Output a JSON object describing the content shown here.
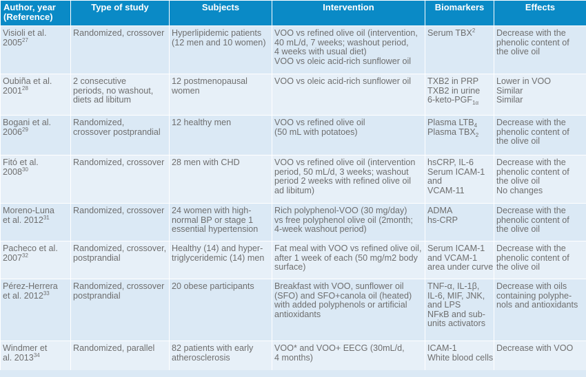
{
  "table": {
    "headers": [
      [
        "Author, year",
        "(Reference)"
      ],
      [
        "Type of study"
      ],
      [
        "Subjects"
      ],
      [
        "Intervention"
      ],
      [
        "Biomarkers"
      ],
      [
        "Effects"
      ]
    ],
    "rows": [
      {
        "author": [
          {
            "t": "Visioli et al."
          },
          {
            "t": "2005",
            "sup": "27"
          }
        ],
        "study": [
          "Randomized, crossover"
        ],
        "subjects": [
          "Hyperlipidemic patients",
          "(12 men and 10 women)"
        ],
        "intervention": [
          "VOO vs refined olive oil (intervention,",
          "40 mL/d, 7 weeks; washout period,",
          "4 weeks with usual diet)",
          "VOO vs oleic acid-rich sunflower oil"
        ],
        "biomarkers": [
          {
            "t": "Serum TBX",
            "sup": "2"
          }
        ],
        "effects": [
          "Decrease with the",
          "phenolic content of",
          "the olive oil"
        ]
      },
      {
        "author": [
          {
            "t": "Oubiña et al."
          },
          {
            "t": "2001",
            "sup": "28"
          }
        ],
        "study": [
          "2 consecutive",
          "periods, no washout,",
          "diets ad libitum"
        ],
        "subjects": [
          "12 postmenopausal",
          "women"
        ],
        "intervention": [
          "VOO vs oleic acid-rich sunflower oil"
        ],
        "biomarkers": [
          {
            "t": "TXB2 in PRP"
          },
          {
            "t": "TXB2 in urine"
          },
          {
            "t": "6-keto-PGF",
            "sub": "1α"
          }
        ],
        "effects": [
          "Lower in VOO",
          "Similar",
          "Similar"
        ]
      },
      {
        "author": [
          {
            "t": "Bogani et al."
          },
          {
            "t": "2006",
            "sup": "29"
          }
        ],
        "study": [
          "Randomized,",
          "crossover postprandial"
        ],
        "subjects": [
          "12 healthy men"
        ],
        "intervention": [
          "VOO vs refined olive oil",
          "(50 mL with potatoes)"
        ],
        "biomarkers": [
          {
            "t": "Plasma LTB",
            "sub": "4"
          },
          {
            "t": "Plasma TBX",
            "sub": "2"
          }
        ],
        "effects": [
          "Decrease with the",
          "phenolic content of",
          "the olive oil"
        ]
      },
      {
        "author": [
          {
            "t": "Fitó et al."
          },
          {
            "t": "2008",
            "sup": "30"
          }
        ],
        "study": [
          "Randomized, crossover"
        ],
        "subjects": [
          "28 men with CHD"
        ],
        "intervention": [
          "VOO vs refined olive oil (intervention",
          "period, 50 mL/d, 3 weeks; washout",
          "period 2 weeks with refined olive oil",
          "ad libitum)"
        ],
        "biomarkers": [
          {
            "t": "hsCRP, IL-6"
          },
          {
            "t": "Serum ICAM-1"
          },
          {
            "t": "and"
          },
          {
            "t": "VCAM-11"
          }
        ],
        "effects": [
          "Decrease with the",
          "phenolic content of",
          "the olive oil",
          "No changes"
        ]
      },
      {
        "author": [
          {
            "t": "Moreno-Luna"
          },
          {
            "t": "et al. 2012",
            "sup": "31"
          }
        ],
        "study": [
          "Randomized, crossover"
        ],
        "subjects": [
          "24 women with high-",
          "normal BP or stage 1",
          "essential hypertension"
        ],
        "intervention": [
          "Rich polyphenol-VOO (30 mg/day)",
          "vs free polyphenol olive oil (2month;",
          "4-week washout period)"
        ],
        "biomarkers": [
          {
            "t": "ADMA"
          },
          {
            "t": "hs-CRP"
          }
        ],
        "effects": [
          "Decrease with the",
          "phenolic content of",
          "the olive oil"
        ]
      },
      {
        "author": [
          {
            "t": "Pacheco et al."
          },
          {
            "t": "2007",
            "sup": "32"
          }
        ],
        "study": [
          "Randomized, crossover,",
          "postprandial"
        ],
        "subjects": [
          "Healthy (14) and hyper-",
          "triglyceridemic (14) men"
        ],
        "intervention": [
          "Fat meal with VOO vs refined olive oil,",
          "after 1 week of each (50 mg/m2 body",
          "surface)"
        ],
        "biomarkers": [
          {
            "t": "Serum ICAM-1"
          },
          {
            "t": "and VCAM-1"
          },
          {
            "t": "area under curve"
          }
        ],
        "effects": [
          "Decrease with the",
          "phenolic content of",
          "the olive oil"
        ]
      },
      {
        "author": [
          {
            "t": "Pérez-Herrera"
          },
          {
            "t": "et al. 2012",
            "sup": "33"
          }
        ],
        "study": [
          "Randomized, crossover",
          "postprandial"
        ],
        "subjects": [
          "20 obese participants"
        ],
        "intervention": [
          "Breakfast with VOO, sunflower oil",
          "(SFO) and SFO+canola oil (heated)",
          "with added polyphenols or artificial",
          "antioxidants"
        ],
        "biomarkers": [
          {
            "t": "TNF-α, IL-1β,"
          },
          {
            "t": "IL-6, MIF, JNK,"
          },
          {
            "t": "and LPS"
          },
          {
            "t": "NFκB and  sub-"
          },
          {
            "t": "units activators"
          }
        ],
        "effects": [
          "Decrease with oils",
          "containing polyphe-",
          "nols and antioxidants"
        ]
      },
      {
        "author": [
          {
            "t": "Windmer et"
          },
          {
            "t": "al. 2013",
            "sup": "34"
          }
        ],
        "study": [
          "Randomized, parallel"
        ],
        "subjects": [
          "82 patients with early",
          "atherosclerosis"
        ],
        "intervention": [
          "VOO* and VOO+ EECG (30mL/d,",
          "4 months)"
        ],
        "biomarkers": [
          {
            "t": "ICAM-1"
          },
          {
            "t": "White blood cells"
          }
        ],
        "effects": [
          "Decrease with VOO"
        ]
      }
    ]
  }
}
